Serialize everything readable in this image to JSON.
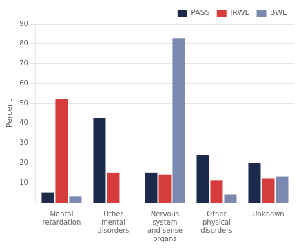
{
  "chart_data": {
    "type": "bar",
    "ylabel": "Percent",
    "categories": [
      "Mental\nretardation",
      "Other\nmental\ndisorders",
      "Nervous\nsystem\nand sense\norgans",
      "Other\nphysical\ndisorders",
      "Unknown"
    ],
    "series": [
      {
        "name": "PASS",
        "color": "#1b2a4a",
        "values": [
          5,
          42.5,
          15,
          24,
          20
        ]
      },
      {
        "name": "IRWE",
        "color": "#d63c3c",
        "values": [
          52.5,
          15,
          14,
          11,
          12
        ]
      },
      {
        "name": "BWE",
        "color": "#7b88b0",
        "values": [
          3,
          0,
          83,
          4,
          13
        ]
      }
    ],
    "ylim": [
      0,
      90
    ],
    "yticks": [
      10,
      20,
      30,
      40,
      50,
      60,
      70,
      80,
      90
    ],
    "grid": true,
    "legend": "upper right"
  }
}
